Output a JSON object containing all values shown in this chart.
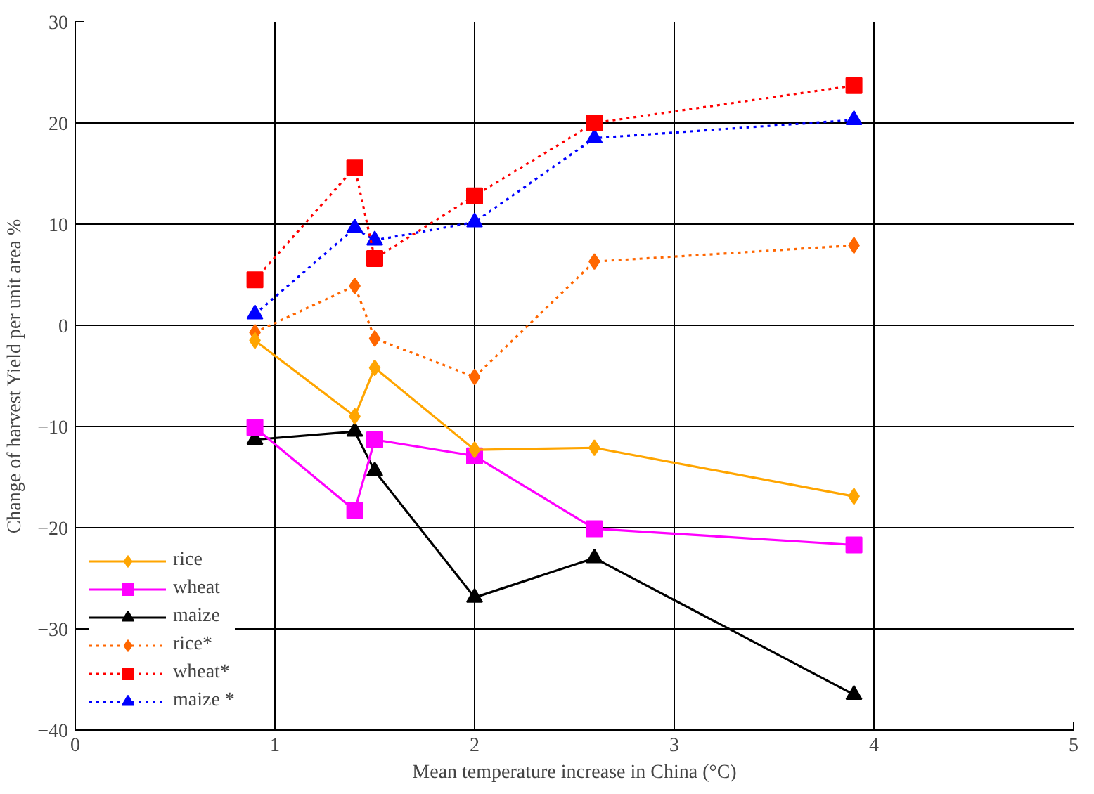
{
  "chart_data": {
    "type": "line",
    "xlabel": "Mean temperature increase in China (°C)",
    "ylabel": "Change of harvest Yield per unit area %",
    "x": [
      0.9,
      1.4,
      1.5,
      2.0,
      2.6,
      3.9
    ],
    "series": [
      {
        "name": "rice",
        "color": "#ffa500",
        "values": [
          -1.5,
          -9,
          -4.2,
          -12.3,
          -12.1,
          -16.9
        ],
        "marker": "diamond",
        "line_style": "solid"
      },
      {
        "name": "wheat",
        "color": "#ff00ff",
        "values": [
          -10.1,
          -18.3,
          -11.3,
          -12.9,
          -20.1,
          -21.7
        ],
        "marker": "square",
        "line_style": "solid"
      },
      {
        "name": "maize",
        "color": "#000000",
        "values": [
          -11.3,
          -10.5,
          -14.4,
          -26.9,
          -23,
          -36.5
        ],
        "marker": "triangle",
        "line_style": "solid"
      },
      {
        "name": "rice*",
        "color": "#ff6600",
        "values": [
          -0.7,
          3.9,
          -1.3,
          -5.1,
          6.3,
          7.9
        ],
        "marker": "diamond",
        "line_style": "dotted"
      },
      {
        "name": "wheat*",
        "color": "#ff0000",
        "values": [
          4.5,
          15.6,
          6.6,
          12.8,
          20,
          23.7
        ],
        "marker": "square",
        "line_style": "dotted"
      },
      {
        "name": "maize *",
        "color": "#0000ff",
        "values": [
          1.1,
          9.6,
          8.4,
          10.2,
          18.5,
          20.3
        ],
        "marker": "triangle",
        "line_style": "dotted"
      }
    ],
    "xlim": [
      0,
      5
    ],
    "ylim": [
      -40,
      30
    ],
    "xticks": [
      0,
      1,
      2,
      3,
      4,
      5
    ],
    "yticks": [
      -40,
      -30,
      -20,
      -10,
      0,
      10,
      20,
      30
    ],
    "grid": true,
    "legend": "bottom left"
  }
}
